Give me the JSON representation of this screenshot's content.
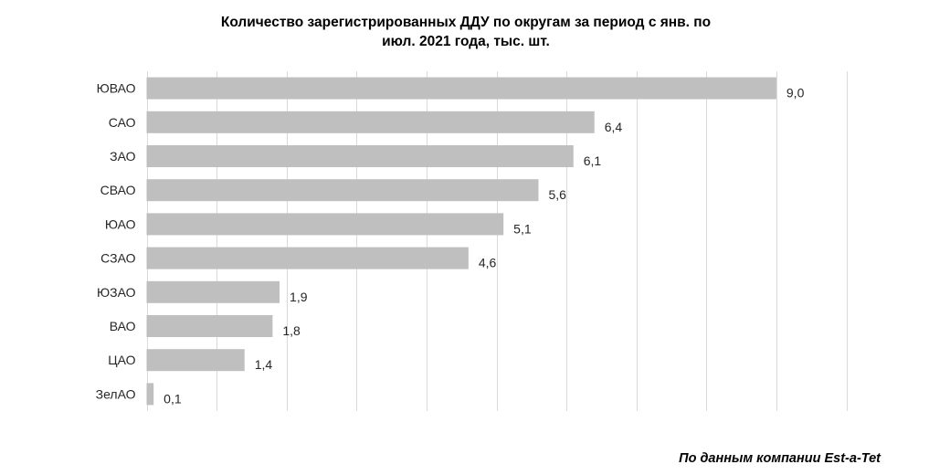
{
  "chart_data": {
    "type": "bar",
    "orientation": "horizontal",
    "title_lines": [
      "Количество зарегистрированных ДДУ по округам за период с янв. по",
      "июл. 2021 года, тыс. шт."
    ],
    "categories": [
      "ЮВАО",
      "САО",
      "ЗАО",
      "СВАО",
      "ЮАО",
      "СЗАО",
      "ЮЗАО",
      "ВАО",
      "ЦАО",
      "ЗелАО"
    ],
    "values": [
      9.0,
      6.4,
      6.1,
      5.6,
      5.1,
      4.6,
      1.9,
      1.8,
      1.4,
      0.1
    ],
    "value_labels": [
      "9,0",
      "6,4",
      "6,1",
      "5,6",
      "5,1",
      "4,6",
      "1,9",
      "1,8",
      "1,4",
      "0,1"
    ],
    "xlim": [
      0,
      10
    ],
    "x_gridline_step": 1,
    "grid": true,
    "legend": "none",
    "bar_color": "#bfbfbf",
    "grid_color": "#d9d9d9"
  },
  "source_note": "По данным компании Est-a-Tet"
}
